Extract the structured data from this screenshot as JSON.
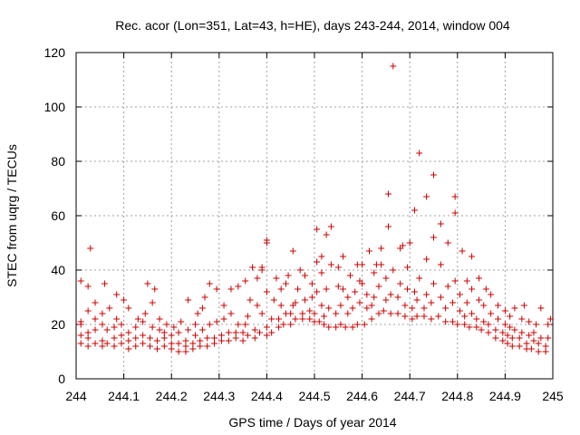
{
  "chart_data": {
    "type": "scatter",
    "title": "Rec. acor (Lon=351, Lat=43, h=HE), days 243-244, 2014, window 004",
    "xlabel": "GPS time / Days of year 2014",
    "ylabel": "STEC from uqrg / TECUs",
    "xlim": [
      244,
      245
    ],
    "ylim": [
      0,
      120
    ],
    "xticks": [
      244,
      244.1,
      244.2,
      244.3,
      244.4,
      244.5,
      244.6,
      244.7,
      244.8,
      244.9,
      245
    ],
    "xtick_labels": [
      "244",
      "244.1",
      "244.2",
      "244.3",
      "244.4",
      "244.5",
      "244.6",
      "244.7",
      "244.8",
      "244.9",
      "245"
    ],
    "yticks": [
      0,
      20,
      40,
      60,
      80,
      100,
      120
    ],
    "ytick_labels": [
      "0",
      "20",
      "40",
      "60",
      "80",
      "100",
      "120"
    ],
    "grid": true,
    "marker": "plus",
    "marker_color": "#cc0000",
    "points": [
      [
        244.01,
        13
      ],
      [
        244.01,
        16
      ],
      [
        244.01,
        20
      ],
      [
        244.01,
        21
      ],
      [
        244.01,
        36
      ],
      [
        244.025,
        12
      ],
      [
        244.025,
        15
      ],
      [
        244.025,
        17
      ],
      [
        244.025,
        25
      ],
      [
        244.025,
        34
      ],
      [
        244.03,
        48
      ],
      [
        244.04,
        13
      ],
      [
        244.04,
        18
      ],
      [
        244.04,
        22
      ],
      [
        244.04,
        28
      ],
      [
        244.055,
        12
      ],
      [
        244.055,
        14
      ],
      [
        244.055,
        20
      ],
      [
        244.055,
        24
      ],
      [
        244.06,
        35
      ],
      [
        244.065,
        13
      ],
      [
        244.065,
        18
      ],
      [
        244.07,
        26
      ],
      [
        244.08,
        12
      ],
      [
        244.08,
        15
      ],
      [
        244.08,
        19
      ],
      [
        244.085,
        22
      ],
      [
        244.085,
        31
      ],
      [
        244.095,
        13
      ],
      [
        244.095,
        16
      ],
      [
        244.095,
        20
      ],
      [
        244.1,
        29
      ],
      [
        244.11,
        11
      ],
      [
        244.11,
        14
      ],
      [
        244.11,
        17
      ],
      [
        244.11,
        26
      ],
      [
        244.125,
        12
      ],
      [
        244.125,
        15
      ],
      [
        244.125,
        19
      ],
      [
        244.13,
        22
      ],
      [
        244.14,
        13
      ],
      [
        244.14,
        16
      ],
      [
        244.14,
        21
      ],
      [
        244.145,
        24
      ],
      [
        244.15,
        35
      ],
      [
        244.155,
        12
      ],
      [
        244.155,
        15
      ],
      [
        244.16,
        19
      ],
      [
        244.16,
        28
      ],
      [
        244.165,
        33
      ],
      [
        244.17,
        11
      ],
      [
        244.17,
        14
      ],
      [
        244.175,
        18
      ],
      [
        244.175,
        22
      ],
      [
        244.185,
        12
      ],
      [
        244.185,
        15
      ],
      [
        244.185,
        17
      ],
      [
        244.19,
        20
      ],
      [
        244.2,
        11
      ],
      [
        244.2,
        13
      ],
      [
        244.2,
        16
      ],
      [
        244.205,
        19
      ],
      [
        244.215,
        10
      ],
      [
        244.215,
        13
      ],
      [
        244.215,
        17
      ],
      [
        244.22,
        21
      ],
      [
        244.23,
        10
      ],
      [
        244.23,
        12
      ],
      [
        244.23,
        14
      ],
      [
        244.235,
        18
      ],
      [
        244.235,
        29
      ],
      [
        244.245,
        11
      ],
      [
        244.245,
        13
      ],
      [
        244.25,
        16
      ],
      [
        244.25,
        20
      ],
      [
        244.255,
        24
      ],
      [
        244.26,
        12
      ],
      [
        244.26,
        14
      ],
      [
        244.265,
        18
      ],
      [
        244.265,
        26
      ],
      [
        244.27,
        30
      ],
      [
        244.275,
        12
      ],
      [
        244.275,
        15
      ],
      [
        244.28,
        20
      ],
      [
        244.28,
        35
      ],
      [
        244.29,
        13
      ],
      [
        244.29,
        15
      ],
      [
        244.295,
        21
      ],
      [
        244.295,
        33
      ],
      [
        244.305,
        14
      ],
      [
        244.305,
        16
      ],
      [
        244.31,
        22
      ],
      [
        244.31,
        27
      ],
      [
        244.32,
        14
      ],
      [
        244.32,
        17
      ],
      [
        244.325,
        24
      ],
      [
        244.325,
        33
      ],
      [
        244.335,
        15
      ],
      [
        244.335,
        17
      ],
      [
        244.34,
        20
      ],
      [
        244.34,
        34
      ],
      [
        244.35,
        14
      ],
      [
        244.35,
        17
      ],
      [
        244.355,
        20
      ],
      [
        244.355,
        36
      ],
      [
        244.36,
        16
      ],
      [
        244.36,
        23
      ],
      [
        244.365,
        29
      ],
      [
        244.37,
        41
      ],
      [
        244.375,
        15
      ],
      [
        244.375,
        18
      ],
      [
        244.38,
        27
      ],
      [
        244.38,
        37
      ],
      [
        244.385,
        17
      ],
      [
        244.39,
        24
      ],
      [
        244.39,
        40
      ],
      [
        244.39,
        41
      ],
      [
        244.4,
        16
      ],
      [
        244.4,
        19
      ],
      [
        244.4,
        32
      ],
      [
        244.4,
        50
      ],
      [
        244.4,
        51
      ],
      [
        244.41,
        17
      ],
      [
        244.41,
        22
      ],
      [
        244.415,
        29
      ],
      [
        244.42,
        37
      ],
      [
        244.425,
        19
      ],
      [
        244.425,
        22
      ],
      [
        244.43,
        27
      ],
      [
        244.43,
        33
      ],
      [
        244.435,
        20
      ],
      [
        244.44,
        24
      ],
      [
        244.44,
        35
      ],
      [
        244.445,
        38
      ],
      [
        244.45,
        20
      ],
      [
        244.45,
        24
      ],
      [
        244.455,
        27
      ],
      [
        244.455,
        47
      ],
      [
        244.46,
        22
      ],
      [
        244.46,
        28
      ],
      [
        244.465,
        33
      ],
      [
        244.47,
        40
      ],
      [
        244.475,
        22
      ],
      [
        244.475,
        24
      ],
      [
        244.48,
        29
      ],
      [
        244.48,
        38
      ],
      [
        244.49,
        22
      ],
      [
        244.49,
        25
      ],
      [
        244.495,
        30
      ],
      [
        244.495,
        35
      ],
      [
        244.5,
        21
      ],
      [
        244.5,
        24
      ],
      [
        244.505,
        32
      ],
      [
        244.505,
        43
      ],
      [
        244.505,
        55
      ],
      [
        244.51,
        21
      ],
      [
        244.515,
        27
      ],
      [
        244.515,
        39
      ],
      [
        244.515,
        45
      ],
      [
        244.52,
        20
      ],
      [
        244.52,
        23
      ],
      [
        244.525,
        33
      ],
      [
        244.525,
        53
      ],
      [
        244.53,
        19
      ],
      [
        244.53,
        26
      ],
      [
        244.535,
        42
      ],
      [
        244.535,
        56
      ],
      [
        244.545,
        19
      ],
      [
        244.545,
        24
      ],
      [
        244.55,
        34
      ],
      [
        244.55,
        41
      ],
      [
        244.555,
        20
      ],
      [
        244.555,
        27
      ],
      [
        244.56,
        33
      ],
      [
        244.56,
        45
      ],
      [
        244.565,
        19
      ],
      [
        244.57,
        24
      ],
      [
        244.57,
        30
      ],
      [
        244.575,
        38
      ],
      [
        244.58,
        19
      ],
      [
        244.58,
        26
      ],
      [
        244.585,
        32
      ],
      [
        244.59,
        42
      ],
      [
        244.59,
        20
      ],
      [
        244.595,
        28
      ],
      [
        244.595,
        36
      ],
      [
        244.6,
        35
      ],
      [
        244.6,
        42
      ],
      [
        244.605,
        20
      ],
      [
        244.61,
        26
      ],
      [
        244.61,
        31
      ],
      [
        244.615,
        47
      ],
      [
        244.62,
        22
      ],
      [
        244.62,
        27
      ],
      [
        244.625,
        30
      ],
      [
        244.625,
        39
      ],
      [
        244.63,
        42
      ],
      [
        244.635,
        24
      ],
      [
        244.635,
        34
      ],
      [
        244.64,
        42
      ],
      [
        244.64,
        48
      ],
      [
        244.645,
        25
      ],
      [
        244.65,
        29
      ],
      [
        244.65,
        37
      ],
      [
        244.655,
        56
      ],
      [
        244.655,
        68
      ],
      [
        244.66,
        24
      ],
      [
        244.66,
        31
      ],
      [
        244.665,
        40
      ],
      [
        244.665,
        115
      ],
      [
        244.675,
        24
      ],
      [
        244.675,
        30
      ],
      [
        244.68,
        35
      ],
      [
        244.68,
        48
      ],
      [
        244.685,
        49
      ],
      [
        244.69,
        23
      ],
      [
        244.69,
        27
      ],
      [
        244.695,
        33
      ],
      [
        244.695,
        41
      ],
      [
        244.7,
        50
      ],
      [
        244.705,
        22
      ],
      [
        244.705,
        26
      ],
      [
        244.71,
        32
      ],
      [
        244.71,
        62
      ],
      [
        244.715,
        23
      ],
      [
        244.715,
        29
      ],
      [
        244.72,
        37
      ],
      [
        244.72,
        83
      ],
      [
        244.73,
        23
      ],
      [
        244.73,
        26
      ],
      [
        244.735,
        31
      ],
      [
        244.735,
        44
      ],
      [
        244.735,
        67
      ],
      [
        244.745,
        22
      ],
      [
        244.745,
        28
      ],
      [
        244.75,
        35
      ],
      [
        244.75,
        52
      ],
      [
        244.75,
        75
      ],
      [
        244.76,
        23
      ],
      [
        244.765,
        30
      ],
      [
        244.765,
        42
      ],
      [
        244.765,
        57
      ],
      [
        244.775,
        21
      ],
      [
        244.775,
        26
      ],
      [
        244.78,
        34
      ],
      [
        244.78,
        50
      ],
      [
        244.79,
        21
      ],
      [
        244.79,
        28
      ],
      [
        244.795,
        36
      ],
      [
        244.795,
        61
      ],
      [
        244.795,
        67
      ],
      [
        244.8,
        20
      ],
      [
        244.805,
        25
      ],
      [
        244.805,
        31
      ],
      [
        244.81,
        47
      ],
      [
        244.815,
        20
      ],
      [
        244.815,
        23
      ],
      [
        244.82,
        28
      ],
      [
        244.82,
        36
      ],
      [
        244.825,
        19
      ],
      [
        244.83,
        24
      ],
      [
        244.83,
        33
      ],
      [
        244.83,
        45
      ],
      [
        244.84,
        19
      ],
      [
        244.84,
        22
      ],
      [
        244.845,
        29
      ],
      [
        244.845,
        37
      ],
      [
        244.85,
        18
      ],
      [
        244.855,
        21
      ],
      [
        244.855,
        27
      ],
      [
        244.86,
        33
      ],
      [
        244.865,
        17
      ],
      [
        244.865,
        20
      ],
      [
        244.87,
        24
      ],
      [
        244.87,
        31
      ],
      [
        244.88,
        15
      ],
      [
        244.88,
        18
      ],
      [
        244.885,
        22
      ],
      [
        244.885,
        27
      ],
      [
        244.895,
        14
      ],
      [
        244.895,
        17
      ],
      [
        244.9,
        20
      ],
      [
        244.9,
        25
      ],
      [
        244.905,
        13
      ],
      [
        244.905,
        16
      ],
      [
        244.91,
        19
      ],
      [
        244.91,
        23
      ],
      [
        244.915,
        12
      ],
      [
        244.915,
        15
      ],
      [
        244.92,
        18
      ],
      [
        244.92,
        26
      ],
      [
        244.93,
        12
      ],
      [
        244.93,
        15
      ],
      [
        244.935,
        17
      ],
      [
        244.935,
        22
      ],
      [
        244.94,
        27
      ],
      [
        244.945,
        11
      ],
      [
        244.945,
        13
      ],
      [
        244.95,
        16
      ],
      [
        244.95,
        21
      ],
      [
        244.955,
        11
      ],
      [
        244.96,
        14
      ],
      [
        244.96,
        17
      ],
      [
        244.965,
        20
      ],
      [
        244.97,
        10
      ],
      [
        244.97,
        13
      ],
      [
        244.975,
        15
      ],
      [
        244.975,
        26
      ],
      [
        244.985,
        10
      ],
      [
        244.985,
        12
      ],
      [
        244.99,
        15
      ],
      [
        244.99,
        20
      ],
      [
        244.995,
        22
      ]
    ]
  }
}
